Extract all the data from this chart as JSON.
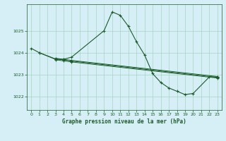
{
  "title": "Graphe pression niveau de la mer (hPa)",
  "bg_color": "#d6eef5",
  "grid_color": "#a8d5c2",
  "line_color": "#1a5c2a",
  "marker_color": "#1a5c2a",
  "xlim": [
    -0.5,
    23.5
  ],
  "ylim": [
    1021.4,
    1026.2
  ],
  "yticks": [
    1022,
    1023,
    1024,
    1025
  ],
  "xticks": [
    0,
    1,
    2,
    3,
    4,
    5,
    6,
    7,
    8,
    9,
    10,
    11,
    12,
    13,
    14,
    15,
    16,
    17,
    18,
    19,
    20,
    21,
    22,
    23
  ],
  "series": [
    {
      "x": [
        0,
        1,
        3,
        4,
        5,
        9,
        10,
        11,
        12,
        13,
        14,
        15,
        16,
        17,
        18,
        19,
        20,
        22,
        23
      ],
      "y": [
        1024.2,
        1024.0,
        1023.7,
        1023.7,
        1023.8,
        1025.0,
        1025.85,
        1025.7,
        1025.2,
        1024.5,
        1023.9,
        1023.05,
        1022.65,
        1022.4,
        1022.25,
        1022.1,
        1022.15,
        1022.9,
        1022.9
      ]
    },
    {
      "x": [
        1,
        3,
        4,
        5,
        23
      ],
      "y": [
        1024.0,
        1023.72,
        1023.68,
        1023.62,
        1022.88
      ]
    },
    {
      "x": [
        3,
        4,
        5,
        23
      ],
      "y": [
        1023.75,
        1023.7,
        1023.65,
        1022.92
      ]
    },
    {
      "x": [
        3,
        4,
        5,
        23
      ],
      "y": [
        1023.68,
        1023.63,
        1023.58,
        1022.85
      ]
    }
  ],
  "font_color": "#1a5c2a",
  "title_fontsize": 5.5,
  "tick_fontsize": 4.5,
  "linewidth": 0.8,
  "markersize": 3.0
}
